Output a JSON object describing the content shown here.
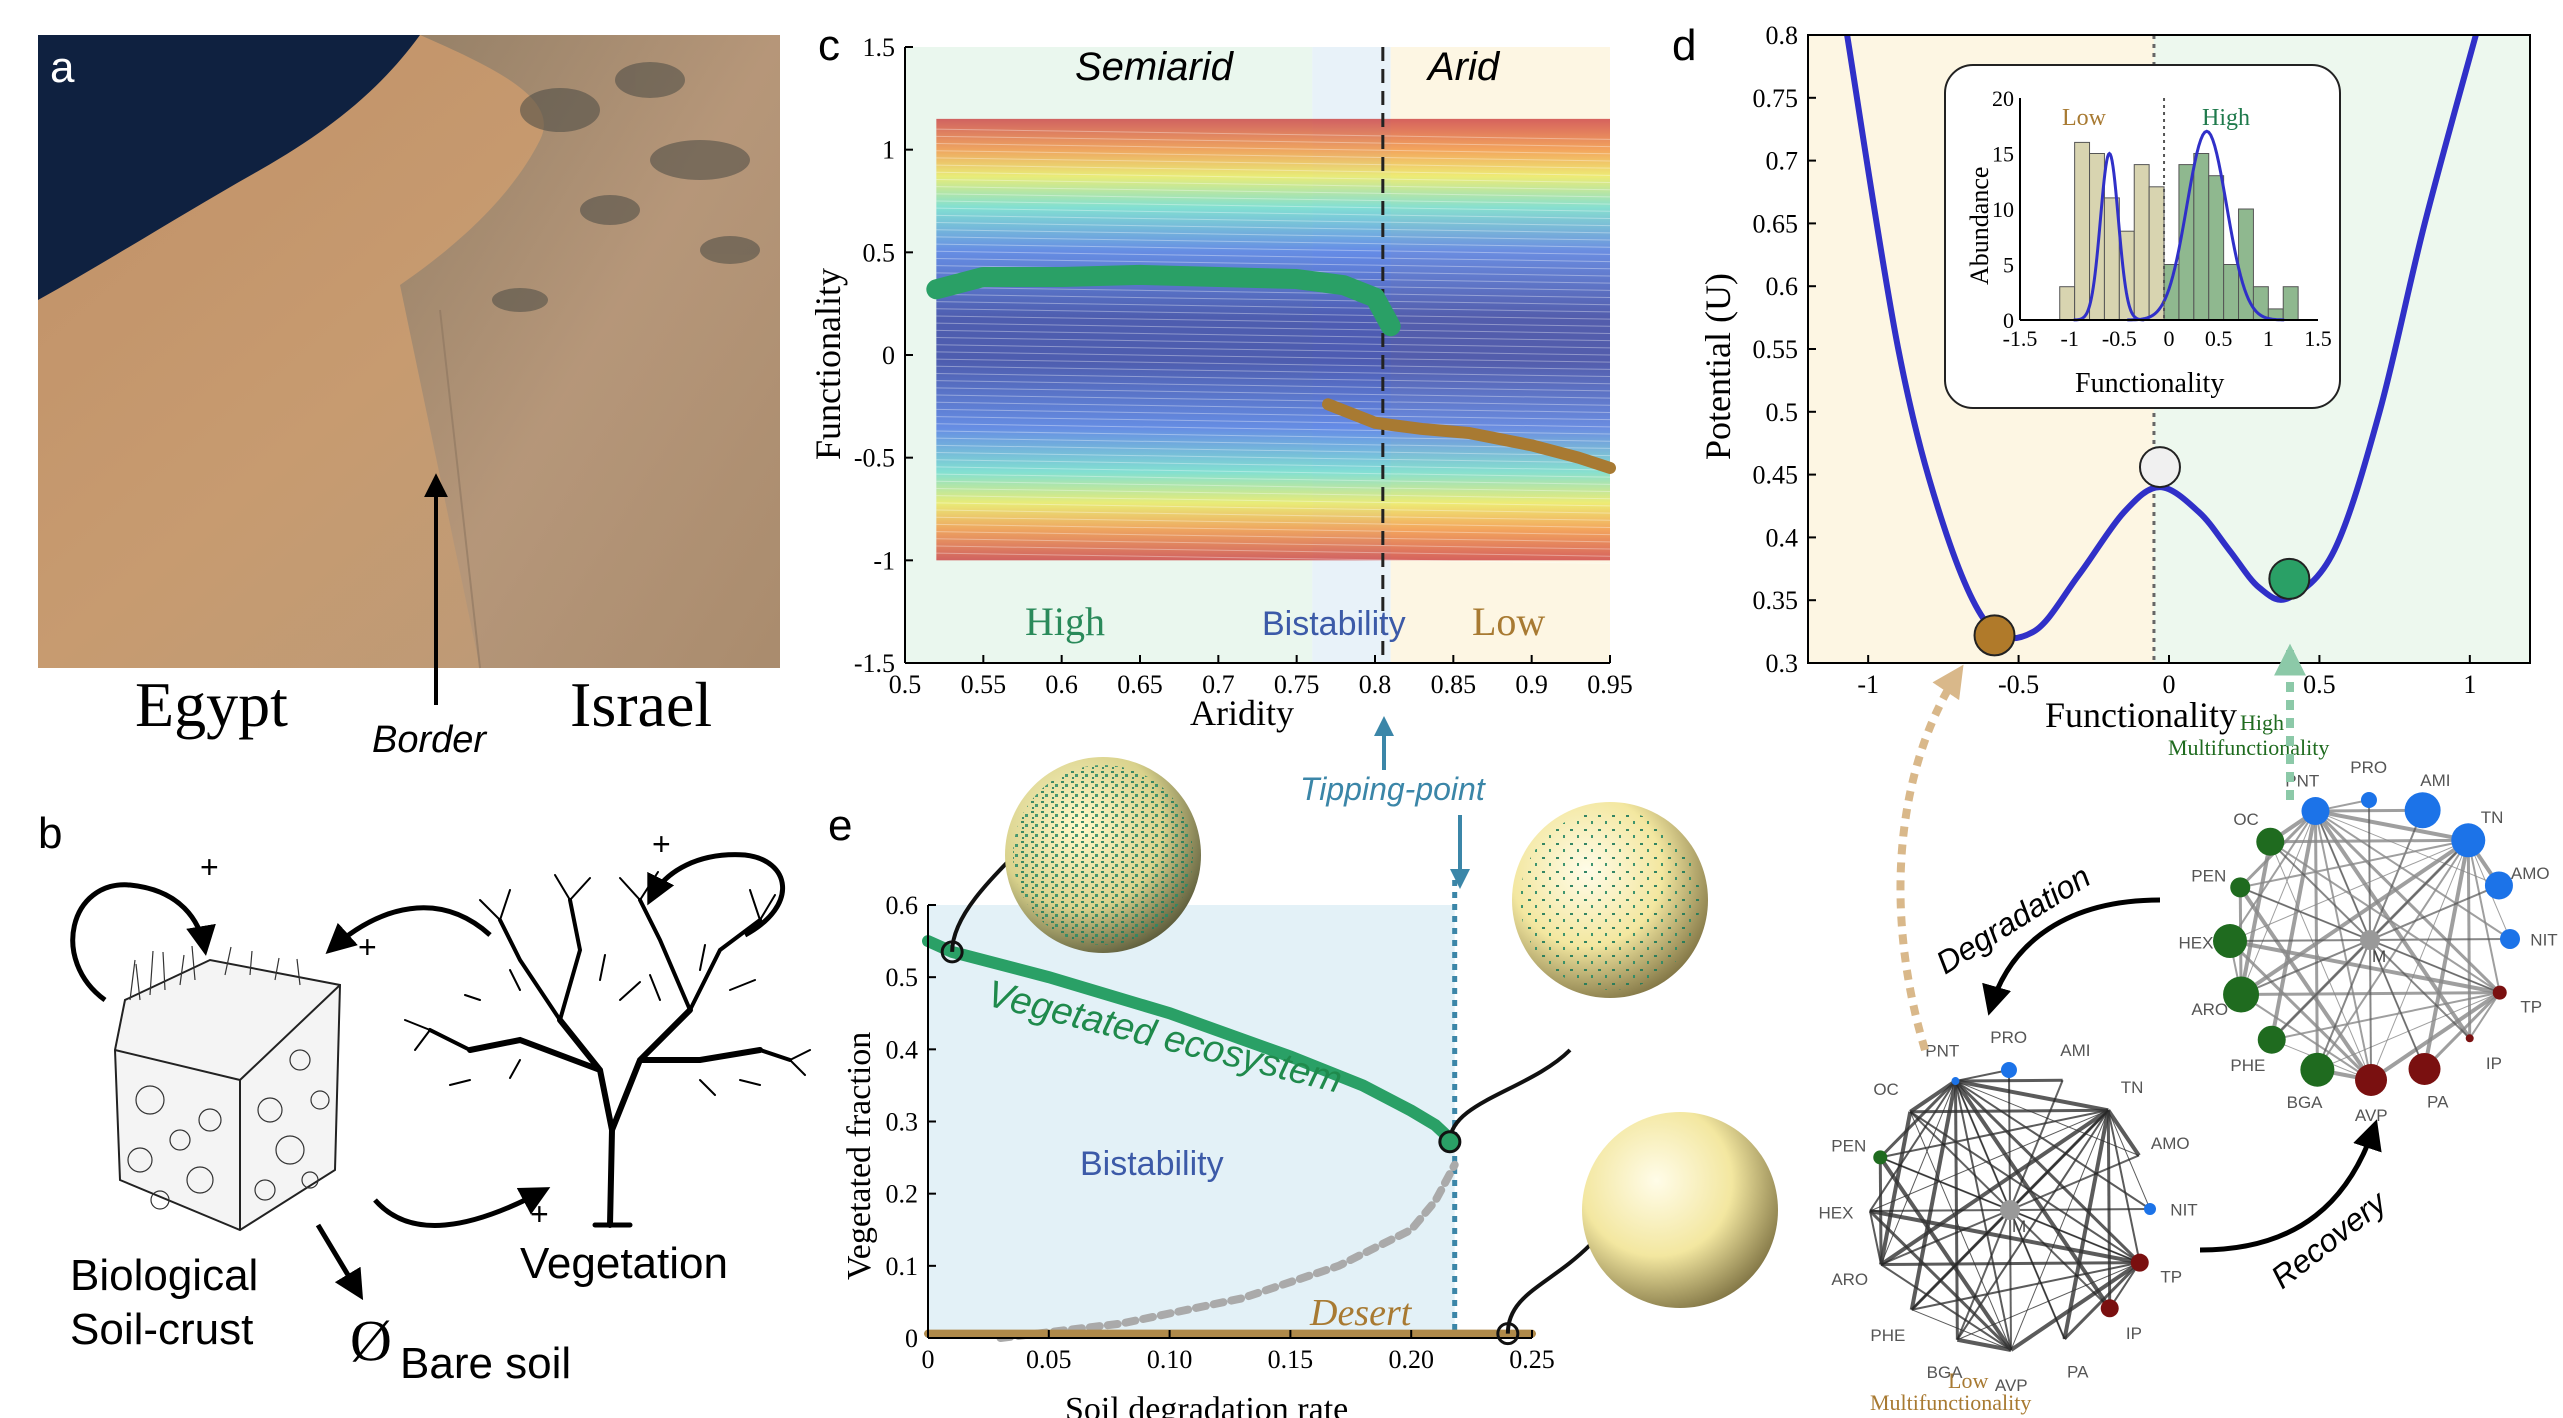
{
  "panels": {
    "a": {
      "letter": "a",
      "label_left": "Egypt",
      "label_right": "Israel",
      "border_label": "Border"
    },
    "b": {
      "letter": "b",
      "crust_label_1": "Biological",
      "crust_label_2": "Soil-crust",
      "vegetation_label": "Vegetation",
      "bare_soil_label": "Bare soil",
      "plus_signs": [
        "+",
        "+",
        "+",
        "+"
      ],
      "bare_symbol": "Ø"
    },
    "c": {
      "letter": "c",
      "title_left": "Semiarid",
      "title_right": "Arid",
      "label_high": "High",
      "label_bistability": "Bistability",
      "label_low": "Low",
      "xlabel": "Aridity",
      "ylabel": "Functionality"
    },
    "d": {
      "letter": "d",
      "xlabel": "Functionality",
      "ylabel": "Potential (U)",
      "inset": {
        "xlabel": "Functionality",
        "ylabel": "Abundance",
        "label_low": "Low",
        "label_high": "High"
      }
    },
    "e": {
      "letter": "e",
      "xlabel": "Soil degradation rate",
      "ylabel": "Vegetated fraction",
      "curve_label": "Vegetated ecosystem",
      "region_label": "Bistability",
      "desert_label": "Desert",
      "tipping_label": "Tipping-point"
    },
    "networks": {
      "degradation_label": "Degradation",
      "recovery_label": "Recovery",
      "high_label_1": "High",
      "high_label_2": "Multifunctionality",
      "low_label_1": "Low",
      "low_label_2": "Multifunctionality"
    }
  },
  "colors": {
    "green": "#1f8a4c",
    "brown": "#a87a32",
    "blue": "#3c5aa8",
    "teal": "#3b86a8",
    "curve_blue": "#3030c8",
    "net_blue": "#1c73e8",
    "net_green": "#1f6b1f",
    "net_red": "#7a1010",
    "net_gray": "#999999"
  },
  "chart_data": [
    {
      "panel": "c",
      "type": "heatmap",
      "xlim": [
        0.5,
        0.95
      ],
      "ylim": [
        -1.5,
        1.5
      ],
      "x_ticks": [
        "0.5",
        "0.55",
        "0.6",
        "0.65",
        "0.7",
        "0.75",
        "0.8",
        "0.85",
        "0.9",
        "0.95"
      ],
      "y_ticks": [
        "-1.5",
        "-1",
        "-0.5",
        "0",
        "0.5",
        "1",
        "1.5"
      ],
      "regions": [
        {
          "name": "Semiarid",
          "from": 0.5,
          "to": 0.76
        },
        {
          "name": "Bistability",
          "from": 0.76,
          "to": 0.81
        },
        {
          "name": "Arid",
          "from": 0.81,
          "to": 0.95
        }
      ],
      "threshold_x": 0.805,
      "series": [
        {
          "name": "High",
          "x": [
            0.52,
            0.55,
            0.6,
            0.65,
            0.7,
            0.75,
            0.78,
            0.8,
            0.81
          ],
          "y": [
            0.32,
            0.38,
            0.38,
            0.39,
            0.38,
            0.37,
            0.34,
            0.28,
            0.14
          ]
        },
        {
          "name": "Low",
          "x": [
            0.77,
            0.8,
            0.83,
            0.86,
            0.9,
            0.93,
            0.95
          ],
          "y": [
            -0.24,
            -0.33,
            -0.36,
            -0.38,
            -0.44,
            -0.5,
            -0.55
          ]
        }
      ]
    },
    {
      "panel": "d",
      "type": "line",
      "xlim": [
        -1.2,
        1.2
      ],
      "ylim": [
        0.3,
        0.8
      ],
      "x_ticks": [
        "-1",
        "-0.5",
        "0",
        "0.5",
        "1"
      ],
      "y_ticks": [
        "0.3",
        "0.35",
        "0.4",
        "0.45",
        "0.5",
        "0.55",
        "0.6",
        "0.65",
        "0.7",
        "0.75",
        "0.8"
      ],
      "series": [
        {
          "name": "",
          "x": [
            -1.07,
            -0.9,
            -0.75,
            -0.6,
            -0.45,
            -0.3,
            -0.15,
            -0.03,
            0.1,
            0.2,
            0.3,
            0.4,
            0.55,
            0.7,
            0.85,
            1.02
          ],
          "y": [
            0.8,
            0.55,
            0.41,
            0.33,
            0.325,
            0.37,
            0.42,
            0.44,
            0.42,
            0.39,
            0.36,
            0.352,
            0.39,
            0.5,
            0.65,
            0.8
          ]
        }
      ],
      "points": [
        {
          "name": "low_state",
          "x": -0.58,
          "y": 0.322
        },
        {
          "name": "unstable",
          "x": -0.03,
          "y": 0.456
        },
        {
          "name": "high_state",
          "x": 0.4,
          "y": 0.367
        }
      ],
      "threshold_x": -0.05
    },
    {
      "panel": "d-inset",
      "type": "bar",
      "xlim": [
        -1.5,
        1.5
      ],
      "ylim": [
        0,
        20
      ],
      "x_ticks": [
        "-1.5",
        "-1",
        "-0.5",
        "0",
        "0.5",
        "1",
        "1.5"
      ],
      "y_ticks": [
        "0",
        "5",
        "10",
        "15",
        "20"
      ],
      "bin_width": 0.15,
      "series": [
        {
          "name": "Low",
          "x": [
            -1.025,
            -0.875,
            -0.725,
            -0.575,
            -0.425,
            -0.275,
            -0.125
          ],
          "values": [
            3,
            16,
            15,
            11,
            8,
            14,
            12
          ]
        },
        {
          "name": "High",
          "x": [
            0.025,
            0.175,
            0.325,
            0.475,
            0.625,
            0.775,
            0.925,
            1.075,
            1.225
          ],
          "values": [
            5,
            14,
            15,
            13,
            5,
            10,
            3,
            1,
            3
          ]
        }
      ]
    },
    {
      "panel": "e",
      "type": "line",
      "xlim": [
        0,
        0.25
      ],
      "ylim": [
        0,
        0.6
      ],
      "x_ticks": [
        "0",
        "0.05",
        "0.10",
        "0.15",
        "0.20",
        "0.25"
      ],
      "y_ticks": [
        "0",
        "0.1",
        "0.2",
        "0.3",
        "0.4",
        "0.5",
        "0.6"
      ],
      "tipping_point_x": 0.218,
      "series": [
        {
          "name": "Vegetated ecosystem",
          "x": [
            0,
            0.01,
            0.05,
            0.1,
            0.15,
            0.18,
            0.2,
            0.21,
            0.218
          ],
          "y": [
            0.55,
            0.535,
            0.5,
            0.45,
            0.39,
            0.35,
            0.315,
            0.295,
            0.27
          ]
        },
        {
          "name": "unstable",
          "x": [
            0.03,
            0.08,
            0.13,
            0.17,
            0.2,
            0.21,
            0.218
          ],
          "y": [
            0.0,
            0.02,
            0.055,
            0.1,
            0.15,
            0.19,
            0.24
          ]
        },
        {
          "name": "Desert",
          "x": [
            0,
            0.25
          ],
          "y": [
            0.006,
            0.006
          ]
        }
      ],
      "points": [
        {
          "name": "state_high",
          "x": 0.01,
          "y": 0.535
        },
        {
          "name": "state_tipping",
          "x": 0.216,
          "y": 0.272
        },
        {
          "name": "state_desert",
          "x": 0.24,
          "y": 0.006
        }
      ]
    }
  ],
  "networks": {
    "high_nodes": [
      "PNT",
      "PRO",
      "AMI",
      "TN",
      "AMO",
      "NIT",
      "TP",
      "IP",
      "PA",
      "AVP",
      "BGA",
      "PHE",
      "ARO",
      "HEX",
      "PEN",
      "OC"
    ],
    "low_nodes": [
      "PNT",
      "PRO",
      "AMI",
      "TN",
      "AMO",
      "NIT",
      "TP",
      "IP",
      "PA",
      "AVP",
      "BGA",
      "PHE",
      "ARO",
      "HEX",
      "PEN",
      "OC"
    ],
    "center": "M",
    "high_sizes": [
      14,
      8,
      18,
      17,
      14,
      10,
      7,
      4,
      16,
      16,
      17,
      14,
      18,
      17,
      10,
      14
    ],
    "low_sizes": [
      4,
      8,
      0,
      0,
      0,
      6,
      9,
      9,
      0,
      0,
      0,
      0,
      0,
      0,
      7,
      0
    ]
  }
}
